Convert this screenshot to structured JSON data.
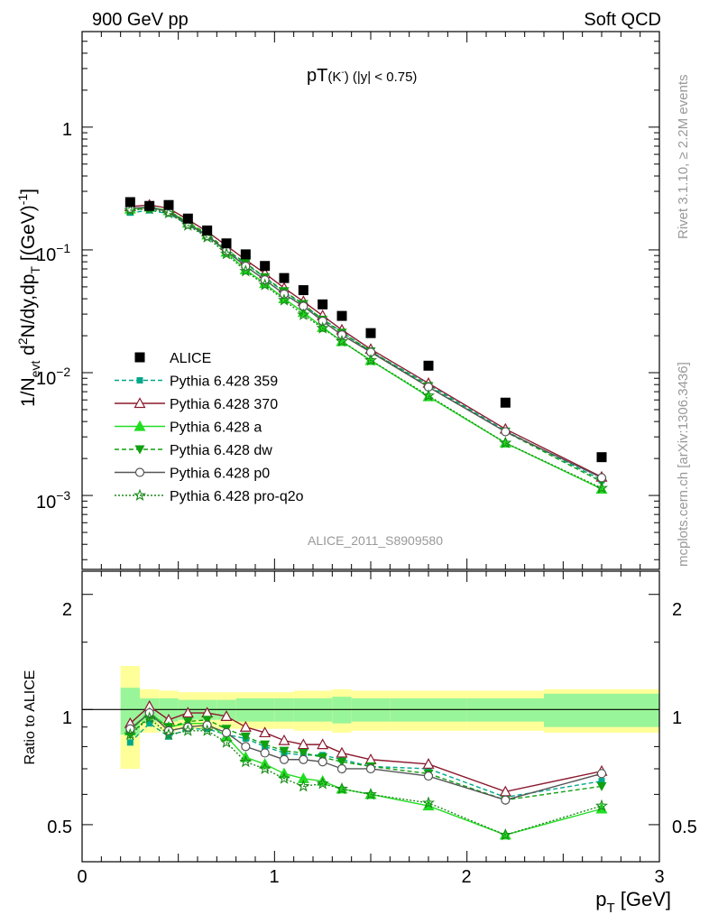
{
  "header": {
    "left": "900 GeV pp",
    "right": "Soft QCD"
  },
  "main_panel": {
    "title_main": "pT",
    "title_sup": "(K",
    "title_minus": "-",
    "title_rest": ") (|y| < 0.75)",
    "ylabel": "1/N_evt d²N/dy,dp_T [(GeV)⁻¹]",
    "watermark": "ALICE_2011_S8909580",
    "yticks": [
      "10^-3",
      "10^-2",
      "10^-1",
      "1"
    ]
  },
  "ratio_panel": {
    "ylabel": "Ratio to ALICE",
    "yticks": [
      "0.5",
      "1",
      "2"
    ]
  },
  "xaxis": {
    "label": "p_T [GeV]",
    "ticks": [
      "0",
      "1",
      "2",
      "3"
    ]
  },
  "side_text": {
    "rivet": "Rivet 3.1.10, ≥ 2.2M events",
    "mcplots": "mcplots.cern.ch [arXiv:1306.3436]"
  },
  "chart_data": {
    "type": "line",
    "log_y": true,
    "xlim": [
      0,
      3
    ],
    "ylim": [
      0.00025,
      6
    ],
    "ratio_ylim": [
      0.4,
      2.3
    ],
    "xlabel": "p_T [GeV]",
    "x": [
      0.25,
      0.35,
      0.45,
      0.55,
      0.65,
      0.75,
      0.85,
      0.95,
      1.05,
      1.15,
      1.25,
      1.35,
      1.5,
      1.8,
      2.2,
      2.7
    ],
    "bin_edges": [
      0.2,
      0.3,
      0.4,
      0.5,
      0.6,
      0.7,
      0.8,
      0.9,
      1.0,
      1.1,
      1.2,
      1.3,
      1.4,
      1.6,
      2.0,
      2.4,
      3.0
    ],
    "data": {
      "name": "ALICE",
      "values": [
        0.245,
        0.228,
        0.232,
        0.18,
        0.144,
        0.113,
        0.092,
        0.074,
        0.059,
        0.047,
        0.036,
        0.029,
        0.021,
        0.0114,
        0.0057,
        0.00205
      ],
      "band_inner": [
        0.14,
        0.07,
        0.07,
        0.06,
        0.06,
        0.06,
        0.07,
        0.07,
        0.07,
        0.07,
        0.07,
        0.08,
        0.07,
        0.07,
        0.07,
        0.1
      ],
      "band_outer": [
        0.3,
        0.13,
        0.12,
        0.11,
        0.11,
        0.11,
        0.11,
        0.11,
        0.11,
        0.12,
        0.12,
        0.13,
        0.12,
        0.12,
        0.12,
        0.13
      ]
    },
    "series": [
      {
        "name": "Pythia 6.428 359",
        "color": "#00a88a",
        "dash": "5,3",
        "marker": "square",
        "ratio": [
          0.82,
          0.92,
          0.85,
          0.89,
          0.89,
          0.86,
          0.84,
          0.8,
          0.77,
          0.76,
          0.76,
          0.74,
          0.71,
          0.7,
          0.59,
          0.65
        ]
      },
      {
        "name": "Pythia 6.428 370",
        "color": "#8b1a2e",
        "dash": "",
        "marker": "triangle-open",
        "ratio": [
          0.92,
          1.02,
          0.94,
          0.98,
          0.98,
          0.96,
          0.9,
          0.87,
          0.83,
          0.81,
          0.81,
          0.77,
          0.74,
          0.72,
          0.61,
          0.69
        ]
      },
      {
        "name": "Pythia 6.428 a",
        "color": "#22dd22",
        "dash": "",
        "marker": "triangle",
        "ratio": [
          0.88,
          0.98,
          0.9,
          0.92,
          0.92,
          0.85,
          0.75,
          0.72,
          0.68,
          0.66,
          0.65,
          0.62,
          0.6,
          0.56,
          0.47,
          0.55
        ]
      },
      {
        "name": "Pythia 6.428 dw",
        "color": "#10a010",
        "dash": "5,3",
        "marker": "triangle-down",
        "ratio": [
          0.86,
          0.96,
          0.9,
          0.93,
          0.94,
          0.89,
          0.85,
          0.81,
          0.78,
          0.77,
          0.75,
          0.73,
          0.71,
          0.68,
          0.58,
          0.63
        ]
      },
      {
        "name": "Pythia 6.428 p0",
        "color": "#555555",
        "dash": "",
        "marker": "circle-open",
        "ratio": [
          0.89,
          0.98,
          0.88,
          0.9,
          0.91,
          0.87,
          0.8,
          0.77,
          0.74,
          0.74,
          0.73,
          0.7,
          0.7,
          0.67,
          0.58,
          0.68
        ]
      },
      {
        "name": "Pythia 6.428 pro-q2o",
        "color": "#1a8a1a",
        "dash": "2,2",
        "marker": "star",
        "ratio": [
          0.86,
          0.95,
          0.86,
          0.88,
          0.88,
          0.82,
          0.73,
          0.7,
          0.66,
          0.63,
          0.64,
          0.62,
          0.6,
          0.57,
          0.47,
          0.56
        ]
      }
    ],
    "legend": {
      "position": "middle-left",
      "items": [
        "ALICE",
        "Pythia 6.428 359",
        "Pythia 6.428 370",
        "Pythia 6.428 a",
        "Pythia 6.428 dw",
        "Pythia 6.428 p0",
        "Pythia 6.428 pro-q2o"
      ]
    }
  }
}
